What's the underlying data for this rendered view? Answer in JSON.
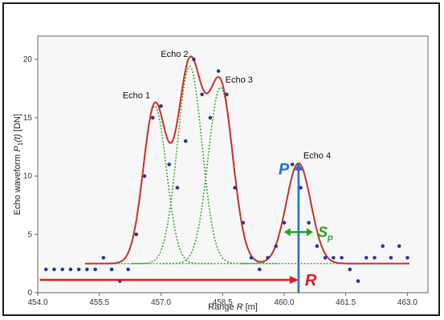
{
  "chart_data": {
    "type": "line",
    "xlabel_main": "Range ",
    "xlabel_var": "R",
    "xlabel_unit": " [m]",
    "ylabel_main": "Echo waveform ",
    "ylabel_var": "P",
    "ylabel_sub": "1",
    "ylabel_arg": "(t)",
    "ylabel_unit": "  [DN]",
    "xlim": [
      454.0,
      463.5
    ],
    "ylim": [
      0,
      22
    ],
    "xticks": [
      "454.0",
      "455.5",
      "457.0",
      "458.5",
      "460.0",
      "461.5",
      "463.0"
    ],
    "xtick_values": [
      454.0,
      455.5,
      457.0,
      458.5,
      460.0,
      461.5,
      463.0
    ],
    "yticks": [
      "0",
      "5",
      "10",
      "15",
      "20"
    ],
    "ytick_values": [
      0,
      5,
      10,
      15,
      20
    ],
    "baseline": 2.5,
    "echoes": [
      {
        "label": "Echo 1",
        "center": 456.85,
        "amplitude": 13.5,
        "sigma": 0.28
      },
      {
        "label": "Echo 2",
        "center": 457.7,
        "amplitude": 16.9,
        "sigma": 0.3
      },
      {
        "label": "Echo 3",
        "center": 458.45,
        "amplitude": 15.1,
        "sigma": 0.3
      },
      {
        "label": "Echo 4",
        "center": 460.35,
        "amplitude": 8.6,
        "sigma": 0.3
      }
    ],
    "samples": {
      "x": [
        454.2,
        454.4,
        454.6,
        454.8,
        455.0,
        455.2,
        455.4,
        455.6,
        455.8,
        456.0,
        456.2,
        456.4,
        456.6,
        456.8,
        457.0,
        457.2,
        457.4,
        457.6,
        457.8,
        458.0,
        458.2,
        458.4,
        458.6,
        458.8,
        459.0,
        459.2,
        459.4,
        459.6,
        459.8,
        460.0,
        460.2,
        460.4,
        460.6,
        460.8,
        461.0,
        461.2,
        461.4,
        461.6,
        461.8,
        462.0,
        462.2,
        462.4,
        462.6,
        462.8,
        463.0
      ],
      "y": [
        2,
        2,
        2,
        2,
        2,
        2,
        2,
        3,
        2,
        1,
        2,
        5,
        10,
        15,
        16,
        11,
        9,
        13,
        20,
        17,
        15,
        19,
        17,
        9,
        6,
        3,
        2,
        3,
        4,
        6,
        11,
        9,
        6,
        4,
        3,
        3,
        3,
        2,
        1,
        3,
        3,
        4,
        3,
        4,
        3
      ]
    },
    "annotations": {
      "P": "P",
      "S": "S",
      "S_sub": "p",
      "R": "R"
    },
    "colors": {
      "fit": "#c9302c",
      "components": "#3fa63a",
      "samples": "#2b3a8c",
      "P": "#1f6fd6",
      "S": "#1fa51f",
      "R": "#e0191e"
    }
  }
}
